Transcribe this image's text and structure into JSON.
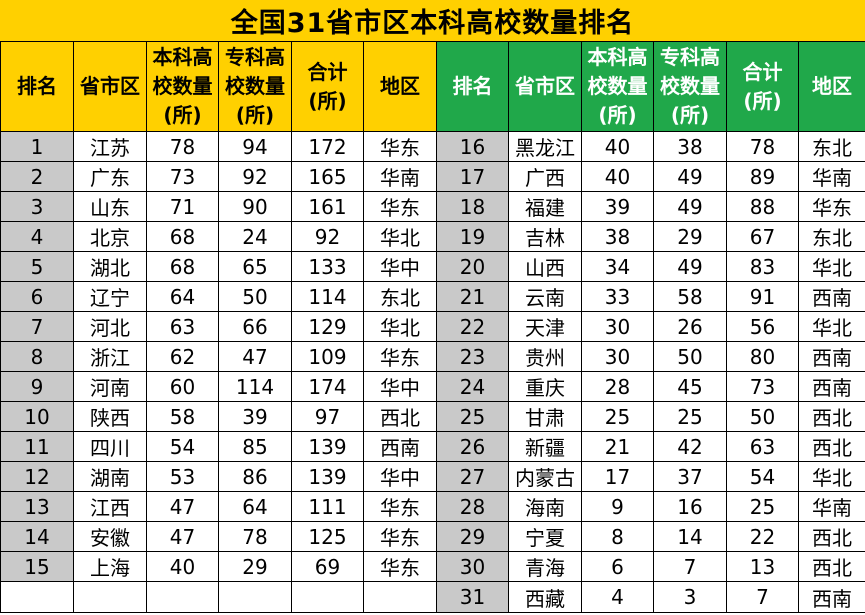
{
  "title": "全国31省市区本科高校数量排名",
  "headers": {
    "rank": "排名",
    "province": "省市区",
    "bachelor": "本科高校数量(所)",
    "junior": "专科高校数量(所)",
    "total": "合计(所)",
    "region": "地区"
  },
  "left_rows": [
    {
      "rank": "1",
      "province": "江苏",
      "bachelor": "78",
      "junior": "94",
      "total": "172",
      "region": "华东"
    },
    {
      "rank": "2",
      "province": "广东",
      "bachelor": "73",
      "junior": "92",
      "total": "165",
      "region": "华南"
    },
    {
      "rank": "3",
      "province": "山东",
      "bachelor": "71",
      "junior": "90",
      "total": "161",
      "region": "华东"
    },
    {
      "rank": "4",
      "province": "北京",
      "bachelor": "68",
      "junior": "24",
      "total": "92",
      "region": "华北"
    },
    {
      "rank": "5",
      "province": "湖北",
      "bachelor": "68",
      "junior": "65",
      "total": "133",
      "region": "华中"
    },
    {
      "rank": "6",
      "province": "辽宁",
      "bachelor": "64",
      "junior": "50",
      "total": "114",
      "region": "东北"
    },
    {
      "rank": "7",
      "province": "河北",
      "bachelor": "63",
      "junior": "66",
      "total": "129",
      "region": "华北"
    },
    {
      "rank": "8",
      "province": "浙江",
      "bachelor": "62",
      "junior": "47",
      "total": "109",
      "region": "华东"
    },
    {
      "rank": "9",
      "province": "河南",
      "bachelor": "60",
      "junior": "114",
      "total": "174",
      "region": "华中"
    },
    {
      "rank": "10",
      "province": "陕西",
      "bachelor": "58",
      "junior": "39",
      "total": "97",
      "region": "西北"
    },
    {
      "rank": "11",
      "province": "四川",
      "bachelor": "54",
      "junior": "85",
      "total": "139",
      "region": "西南"
    },
    {
      "rank": "12",
      "province": "湖南",
      "bachelor": "53",
      "junior": "86",
      "total": "139",
      "region": "华中"
    },
    {
      "rank": "13",
      "province": "江西",
      "bachelor": "47",
      "junior": "64",
      "total": "111",
      "region": "华东"
    },
    {
      "rank": "14",
      "province": "安徽",
      "bachelor": "47",
      "junior": "78",
      "total": "125",
      "region": "华东"
    },
    {
      "rank": "15",
      "province": "上海",
      "bachelor": "40",
      "junior": "29",
      "total": "69",
      "region": "华东"
    }
  ],
  "right_rows": [
    {
      "rank": "16",
      "province": "黑龙江",
      "bachelor": "40",
      "junior": "38",
      "total": "78",
      "region": "东北"
    },
    {
      "rank": "17",
      "province": "广西",
      "bachelor": "40",
      "junior": "49",
      "total": "89",
      "region": "华南"
    },
    {
      "rank": "18",
      "province": "福建",
      "bachelor": "39",
      "junior": "49",
      "total": "88",
      "region": "华东"
    },
    {
      "rank": "19",
      "province": "吉林",
      "bachelor": "38",
      "junior": "29",
      "total": "67",
      "region": "东北"
    },
    {
      "rank": "20",
      "province": "山西",
      "bachelor": "34",
      "junior": "49",
      "total": "83",
      "region": "华北"
    },
    {
      "rank": "21",
      "province": "云南",
      "bachelor": "33",
      "junior": "58",
      "total": "91",
      "region": "西南"
    },
    {
      "rank": "22",
      "province": "天津",
      "bachelor": "30",
      "junior": "26",
      "total": "56",
      "region": "华北"
    },
    {
      "rank": "23",
      "province": "贵州",
      "bachelor": "30",
      "junior": "50",
      "total": "80",
      "region": "西南"
    },
    {
      "rank": "24",
      "province": "重庆",
      "bachelor": "28",
      "junior": "45",
      "total": "73",
      "region": "西南"
    },
    {
      "rank": "25",
      "province": "甘肃",
      "bachelor": "25",
      "junior": "25",
      "total": "50",
      "region": "西北"
    },
    {
      "rank": "26",
      "province": "新疆",
      "bachelor": "21",
      "junior": "42",
      "total": "63",
      "region": "西北"
    },
    {
      "rank": "27",
      "province": "内蒙古",
      "bachelor": "17",
      "junior": "37",
      "total": "54",
      "region": "华北"
    },
    {
      "rank": "28",
      "province": "海南",
      "bachelor": "9",
      "junior": "16",
      "total": "25",
      "region": "华南"
    },
    {
      "rank": "29",
      "province": "宁夏",
      "bachelor": "8",
      "junior": "14",
      "total": "22",
      "region": "西北"
    },
    {
      "rank": "30",
      "province": "青海",
      "bachelor": "6",
      "junior": "7",
      "total": "13",
      "region": "西北"
    },
    {
      "rank": "31",
      "province": "西藏",
      "bachelor": "4",
      "junior": "3",
      "total": "7",
      "region": "西南"
    }
  ],
  "colors": {
    "title_bg": "#ffd000",
    "left_header_bg": "#ffd000",
    "right_header_bg": "#20a84a",
    "rank_bg": "#c9c9c9"
  }
}
